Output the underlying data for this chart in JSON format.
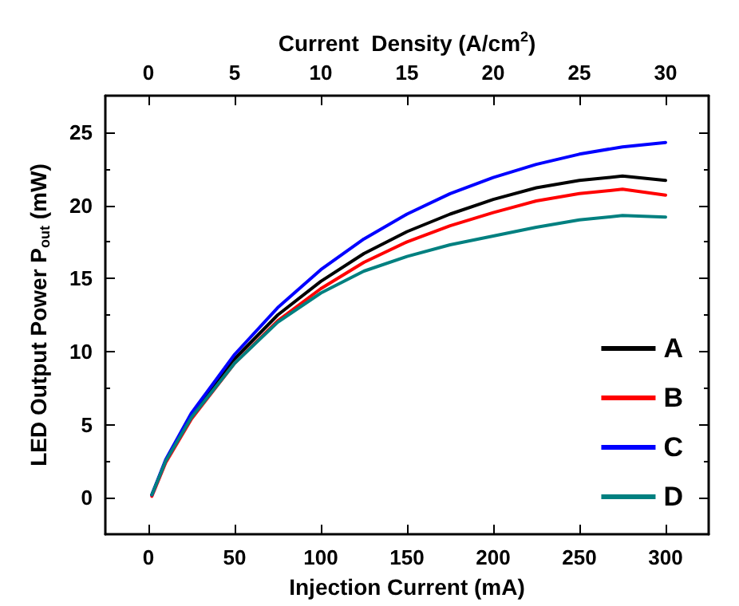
{
  "chart_data": {
    "type": "line",
    "xlabel": "Injection Current (mA)",
    "ylabel": "LED Output Power P$_{out}$ (mW)",
    "x2label": "Current  Density (A/cm$^{2}$)",
    "x": [
      2,
      10,
      25,
      50,
      75,
      100,
      125,
      150,
      175,
      200,
      225,
      250,
      275,
      300
    ],
    "series": [
      {
        "name": "A",
        "color": "#000000",
        "values": [
          0.2,
          2.5,
          5.6,
          9.5,
          12.5,
          14.8,
          16.7,
          18.2,
          19.4,
          20.4,
          21.2,
          21.7,
          22.0,
          21.7
        ]
      },
      {
        "name": "B",
        "color": "#ff0000",
        "values": [
          0.1,
          2.4,
          5.4,
          9.2,
          12.1,
          14.3,
          16.1,
          17.5,
          18.6,
          19.5,
          20.3,
          20.8,
          21.1,
          20.7
        ]
      },
      {
        "name": "C",
        "color": "#0000ff",
        "values": [
          0.2,
          2.6,
          5.8,
          9.8,
          13.0,
          15.6,
          17.7,
          19.4,
          20.8,
          21.9,
          22.8,
          23.5,
          24.0,
          24.3
        ]
      },
      {
        "name": "D",
        "color": "#008080",
        "values": [
          0.2,
          2.5,
          5.5,
          9.2,
          12.0,
          14.0,
          15.5,
          16.5,
          17.3,
          17.9,
          18.5,
          19.0,
          19.3,
          19.2
        ]
      }
    ],
    "xlim": [
      -25,
      325
    ],
    "xticks": [
      0,
      50,
      100,
      150,
      200,
      250,
      300
    ],
    "x2lim": [
      -2.5,
      32.5
    ],
    "x2ticks": [
      0,
      5,
      10,
      15,
      20,
      25,
      30
    ],
    "ylim": [
      -2.5,
      27.5
    ],
    "yticks": [
      0,
      5,
      10,
      15,
      20,
      25
    ],
    "grid": false,
    "legend": "bottom right",
    "marker": "none",
    "line_style": "solid"
  }
}
